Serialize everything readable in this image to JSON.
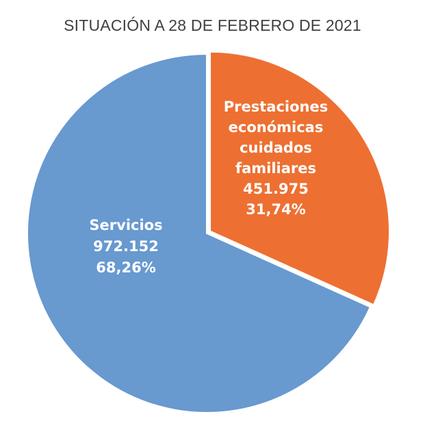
{
  "chart_data": {
    "type": "pie",
    "title": "SITUACIÓN A 28 DE FEBRERO DE 2021",
    "slices": [
      {
        "label_lines": [
          "Prestaciones",
          "económicas",
          "cuidados",
          "familiares"
        ],
        "label": "Prestaciones económicas cuidados familiares",
        "value": 451975,
        "value_text": "451.975",
        "percent": 31.74,
        "percent_text": "31,74%",
        "color": "#ED7032",
        "exploded": true
      },
      {
        "label_lines": [
          "Servicios"
        ],
        "label": "Servicios",
        "value": 972152,
        "value_text": "972.152",
        "percent": 68.26,
        "percent_text": "68,26%",
        "color": "#6899CF",
        "exploded": false
      }
    ],
    "start_angle": "12 o'clock",
    "direction": "clockwise",
    "legend": "none"
  }
}
